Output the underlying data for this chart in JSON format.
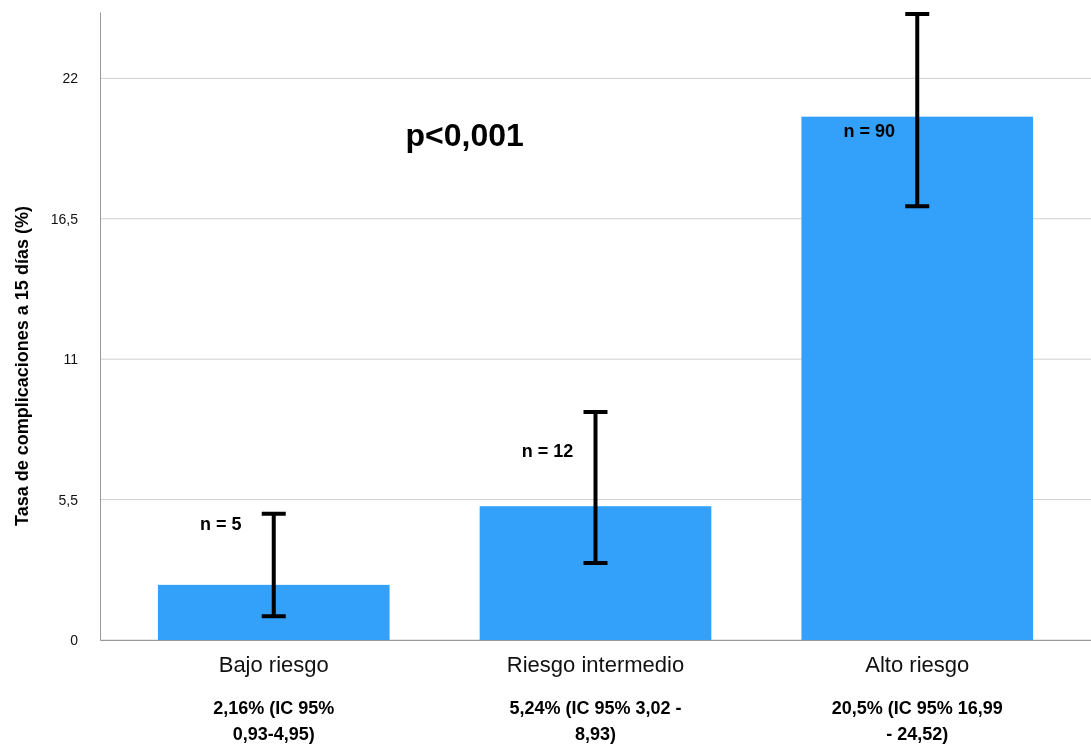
{
  "chart_data": {
    "type": "bar",
    "ylabel": "Tasa de complicaciones a 15 días (%)",
    "categories": [
      "Bajo riesgo",
      "Riesgo intermedio",
      "Alto riesgo"
    ],
    "values": [
      2.16,
      5.24,
      20.5
    ],
    "errors": [
      [
        0.93,
        4.95
      ],
      [
        3.02,
        8.93
      ],
      [
        16.99,
        24.52
      ]
    ],
    "color": "#33a0fa",
    "ylim": [
      0,
      24.6
    ],
    "yticks": [
      0,
      {
        "value": 5.5,
        "label": "5,5"
      },
      11,
      {
        "value": 16.5,
        "label": "16,5"
      },
      22
    ],
    "grid": "y",
    "annotations": [
      "p<0,001",
      {
        "text": "n = 5",
        "x": "Bajo riesgo",
        "y": 4.5
      },
      {
        "text": "n = 12",
        "x": "Riesgo intermedio",
        "y": 7.35
      },
      {
        "text": "n = 90",
        "x": "Alto riesgo",
        "y": 19.9
      },
      "2,16% (IC 95% 0,93-4,95)",
      "5,24% (IC 95% 3,02 - 8,93)",
      "20,5% (IC 95% 16,99 - 24,52)"
    ]
  }
}
